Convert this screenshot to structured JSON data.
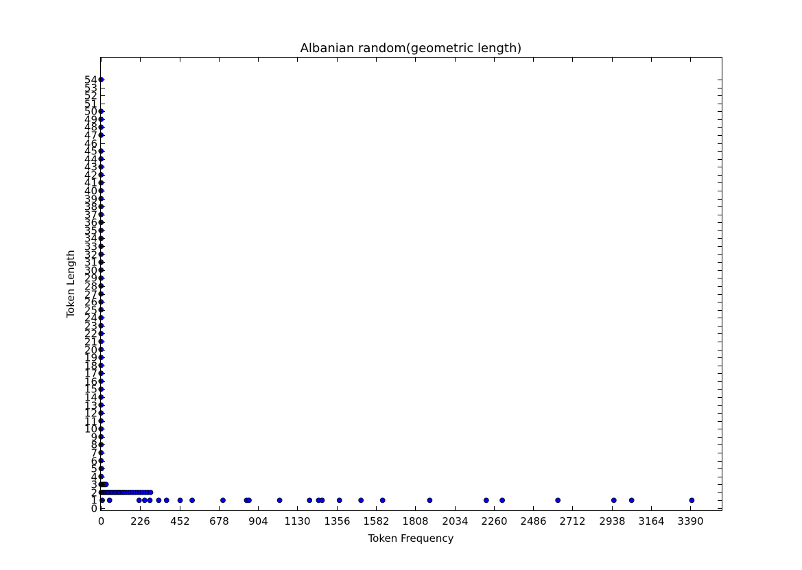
{
  "chart_data": {
    "type": "scatter",
    "title": "Albanian random(geometric length)",
    "xlabel": "Token Frequency",
    "ylabel": "Token Length",
    "xlim": [
      0,
      3570
    ],
    "ylim": [
      0,
      54
    ],
    "x_ticks": [
      0,
      226,
      452,
      678,
      904,
      1130,
      1356,
      1582,
      1808,
      2034,
      2260,
      2486,
      2712,
      2938,
      3164,
      3390
    ],
    "y_ticks": [
      0,
      1,
      2,
      3,
      4,
      5,
      6,
      7,
      8,
      9,
      10,
      11,
      12,
      13,
      14,
      15,
      16,
      17,
      18,
      19,
      20,
      21,
      22,
      23,
      24,
      25,
      26,
      27,
      28,
      29,
      30,
      31,
      32,
      33,
      34,
      35,
      36,
      37,
      38,
      39,
      40,
      41,
      42,
      43,
      44,
      45,
      46,
      47,
      48,
      49,
      50,
      51,
      52,
      53,
      54
    ],
    "grid": false,
    "legend": "none",
    "marker_color": "#0000ff",
    "marker_edge_color": "#000000",
    "points": [
      {
        "x": 1,
        "y": 54
      },
      {
        "x": 1,
        "y": 50
      },
      {
        "x": 1,
        "y": 49
      },
      {
        "x": 1,
        "y": 48
      },
      {
        "x": 1,
        "y": 47
      },
      {
        "x": 1,
        "y": 45
      },
      {
        "x": 1,
        "y": 44
      },
      {
        "x": 1,
        "y": 43
      },
      {
        "x": 1,
        "y": 42
      },
      {
        "x": 1,
        "y": 41
      },
      {
        "x": 1,
        "y": 40
      },
      {
        "x": 1,
        "y": 39
      },
      {
        "x": 1,
        "y": 38
      },
      {
        "x": 1,
        "y": 37
      },
      {
        "x": 1,
        "y": 36
      },
      {
        "x": 1,
        "y": 35
      },
      {
        "x": 1,
        "y": 34
      },
      {
        "x": 1,
        "y": 33
      },
      {
        "x": 1,
        "y": 32
      },
      {
        "x": 1,
        "y": 31
      },
      {
        "x": 1,
        "y": 30
      },
      {
        "x": 1,
        "y": 29
      },
      {
        "x": 1,
        "y": 28
      },
      {
        "x": 1,
        "y": 27
      },
      {
        "x": 1,
        "y": 26
      },
      {
        "x": 1,
        "y": 25
      },
      {
        "x": 1,
        "y": 24
      },
      {
        "x": 1,
        "y": 23
      },
      {
        "x": 1,
        "y": 22
      },
      {
        "x": 1,
        "y": 21
      },
      {
        "x": 1,
        "y": 20
      },
      {
        "x": 1,
        "y": 19
      },
      {
        "x": 1,
        "y": 18
      },
      {
        "x": 1,
        "y": 17
      },
      {
        "x": 1,
        "y": 16
      },
      {
        "x": 1,
        "y": 15
      },
      {
        "x": 1,
        "y": 14
      },
      {
        "x": 1,
        "y": 13
      },
      {
        "x": 1,
        "y": 12
      },
      {
        "x": 1,
        "y": 11
      },
      {
        "x": 1,
        "y": 10
      },
      {
        "x": 1,
        "y": 9
      },
      {
        "x": 1,
        "y": 8
      },
      {
        "x": 1,
        "y": 7
      },
      {
        "x": 1,
        "y": 6
      },
      {
        "x": 2,
        "y": 5
      },
      {
        "x": 3,
        "y": 5
      },
      {
        "x": 1,
        "y": 4
      },
      {
        "x": 2,
        "y": 4
      },
      {
        "x": 1,
        "y": 3
      },
      {
        "x": 3,
        "y": 3
      },
      {
        "x": 6,
        "y": 3
      },
      {
        "x": 10,
        "y": 3
      },
      {
        "x": 14,
        "y": 3
      },
      {
        "x": 18,
        "y": 3
      },
      {
        "x": 22,
        "y": 3
      },
      {
        "x": 26,
        "y": 3
      },
      {
        "x": 30,
        "y": 3
      },
      {
        "x": 2,
        "y": 2
      },
      {
        "x": 6,
        "y": 2
      },
      {
        "x": 12,
        "y": 2
      },
      {
        "x": 18,
        "y": 2
      },
      {
        "x": 24,
        "y": 2
      },
      {
        "x": 30,
        "y": 2
      },
      {
        "x": 38,
        "y": 2
      },
      {
        "x": 46,
        "y": 2
      },
      {
        "x": 54,
        "y": 2
      },
      {
        "x": 62,
        "y": 2
      },
      {
        "x": 70,
        "y": 2
      },
      {
        "x": 78,
        "y": 2
      },
      {
        "x": 86,
        "y": 2
      },
      {
        "x": 94,
        "y": 2
      },
      {
        "x": 102,
        "y": 2
      },
      {
        "x": 110,
        "y": 2
      },
      {
        "x": 118,
        "y": 2
      },
      {
        "x": 126,
        "y": 2
      },
      {
        "x": 134,
        "y": 2
      },
      {
        "x": 145,
        "y": 2
      },
      {
        "x": 158,
        "y": 2
      },
      {
        "x": 170,
        "y": 2
      },
      {
        "x": 184,
        "y": 2
      },
      {
        "x": 198,
        "y": 2
      },
      {
        "x": 212,
        "y": 2
      },
      {
        "x": 226,
        "y": 2
      },
      {
        "x": 240,
        "y": 2
      },
      {
        "x": 256,
        "y": 2
      },
      {
        "x": 270,
        "y": 2
      },
      {
        "x": 286,
        "y": 2
      },
      {
        "x": 8,
        "y": 1
      },
      {
        "x": 50,
        "y": 1
      },
      {
        "x": 220,
        "y": 1
      },
      {
        "x": 252,
        "y": 1
      },
      {
        "x": 282,
        "y": 1
      },
      {
        "x": 333,
        "y": 1
      },
      {
        "x": 378,
        "y": 1
      },
      {
        "x": 456,
        "y": 1
      },
      {
        "x": 525,
        "y": 1
      },
      {
        "x": 702,
        "y": 1
      },
      {
        "x": 838,
        "y": 1
      },
      {
        "x": 852,
        "y": 1
      },
      {
        "x": 1028,
        "y": 1
      },
      {
        "x": 1200,
        "y": 1
      },
      {
        "x": 1252,
        "y": 1
      },
      {
        "x": 1272,
        "y": 1
      },
      {
        "x": 1372,
        "y": 1
      },
      {
        "x": 1496,
        "y": 1
      },
      {
        "x": 1620,
        "y": 1
      },
      {
        "x": 1891,
        "y": 1
      },
      {
        "x": 2216,
        "y": 1
      },
      {
        "x": 2308,
        "y": 1
      },
      {
        "x": 2628,
        "y": 1
      },
      {
        "x": 2950,
        "y": 1
      },
      {
        "x": 3052,
        "y": 1
      },
      {
        "x": 3398,
        "y": 1
      }
    ]
  }
}
